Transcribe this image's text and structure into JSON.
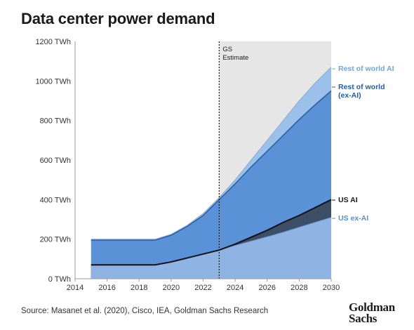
{
  "title": "Data center power demand",
  "source": "Source: Masanet et al. (2020), Cisco, IEA, Goldman Sachs Research",
  "logo": [
    "Goldman",
    "Sachs"
  ],
  "chart_data": {
    "type": "area",
    "title": "Data center power demand",
    "xlabel": "",
    "ylabel": "",
    "xlim": [
      2014,
      2030
    ],
    "ylim": [
      0,
      1200
    ],
    "y_unit": "TWh",
    "x_ticks": [
      2014,
      2016,
      2018,
      2020,
      2022,
      2024,
      2026,
      2028,
      2030
    ],
    "x_tick_labels": [
      "2014",
      "2016",
      "2018",
      "2020",
      "2022",
      "2024",
      "2026",
      "2028",
      "2030"
    ],
    "y_ticks": [
      0,
      200,
      400,
      600,
      800,
      1000,
      1200
    ],
    "y_tick_labels": [
      "0 TWh",
      "200 TWh",
      "400 TWh",
      "600 TWh",
      "800 TWh",
      "1000 TWh",
      "1200 TWh"
    ],
    "grid": false,
    "estimate_region": {
      "start": 2023,
      "end": 2030,
      "label": [
        "GS",
        "Estimate"
      ]
    },
    "x": [
      2015,
      2016,
      2017,
      2018,
      2019,
      2020,
      2021,
      2022,
      2023,
      2024,
      2025,
      2026,
      2027,
      2028,
      2029,
      2030
    ],
    "series": [
      {
        "name": "US ex-AI",
        "color": "#8fb4e3",
        "label_color": "#5a8fd0",
        "values": [
          70,
          70,
          70,
          70,
          70,
          85,
          105,
          125,
          145,
          168,
          190,
          212,
          235,
          260,
          285,
          310
        ]
      },
      {
        "name": "US AI",
        "color": "#3d4f66",
        "label_color": "#1a1a1a",
        "values": [
          70,
          70,
          70,
          70,
          70,
          85,
          105,
          125,
          145,
          175,
          210,
          245,
          285,
          320,
          360,
          400
        ]
      },
      {
        "name": "Rest of world (ex-AI)",
        "color": "#5b91d6",
        "label_color": "#1f5fa8",
        "values": [
          195,
          195,
          195,
          195,
          195,
          220,
          265,
          320,
          400,
          480,
          565,
          645,
          725,
          805,
          880,
          950
        ]
      },
      {
        "name": "Rest of world AI",
        "color": "#9bc1ea",
        "label_color": "#6fa5dc",
        "values": [
          200,
          200,
          200,
          200,
          200,
          225,
          270,
          330,
          410,
          500,
          600,
          700,
          800,
          900,
          990,
          1070
        ]
      }
    ]
  }
}
